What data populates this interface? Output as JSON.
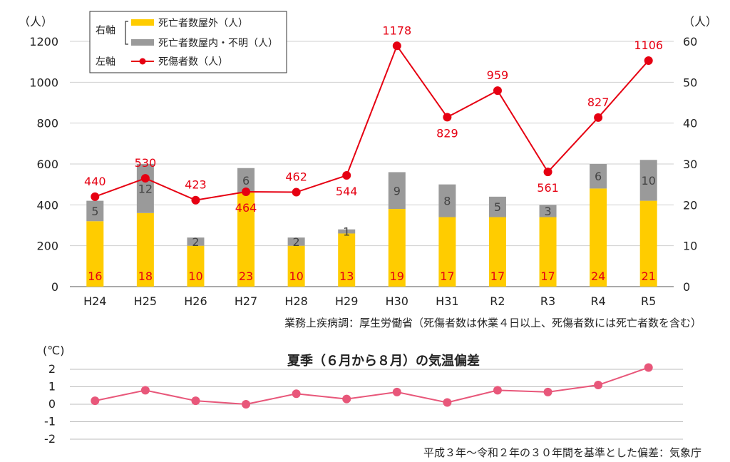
{
  "chart_data": [
    {
      "type": "bar",
      "categories": [
        "H24",
        "H25",
        "H26",
        "H27",
        "H28",
        "H29",
        "H30",
        "H31",
        "R2",
        "R3",
        "R4",
        "R5"
      ],
      "left_axis": {
        "unit": "（人）",
        "ylim": [
          0,
          1200
        ],
        "ticks": [
          "0",
          "200",
          "400",
          "600",
          "800",
          "1000",
          "1200"
        ]
      },
      "right_axis": {
        "unit": "（人）",
        "ylim": [
          0,
          60
        ],
        "ticks": [
          "0",
          "10",
          "20",
          "30",
          "40",
          "50",
          "60"
        ]
      },
      "legend": {
        "right_axis_label": "右軸",
        "left_axis_label": "左軸",
        "items": [
          "死亡者数屋外（人）",
          "死亡者数屋内・不明（人）",
          "死傷者数（人）"
        ]
      },
      "series": [
        {
          "name": "死亡者数屋外（人）",
          "axis": "right",
          "kind": "bar",
          "color": "#FFCC00",
          "values": [
            16,
            18,
            10,
            23,
            10,
            13,
            19,
            17,
            17,
            17,
            24,
            21
          ]
        },
        {
          "name": "死亡者数屋内・不明（人）",
          "axis": "right",
          "kind": "bar",
          "color": "#9A9A9A",
          "values": [
            5,
            12,
            2,
            6,
            2,
            1,
            9,
            8,
            5,
            3,
            6,
            10
          ]
        },
        {
          "name": "死傷者数（人）",
          "axis": "left",
          "kind": "line",
          "color": "#E60012",
          "values": [
            440,
            530,
            423,
            464,
            462,
            544,
            1178,
            829,
            959,
            561,
            827,
            1106
          ]
        }
      ],
      "source": "業務上疾病調：厚生労働省（死傷者数は休業４日以上、死傷者数には死亡者数を含む）"
    },
    {
      "type": "line",
      "title": "夏季（６月から８月）の気温偏差",
      "y_unit": "(℃)",
      "ylim": [
        -2,
        2
      ],
      "ticks": [
        "2",
        "1",
        "0",
        "-1",
        "-2"
      ],
      "color": "#E8577A",
      "values": [
        0.2,
        0.8,
        0.2,
        0.0,
        0.6,
        0.3,
        0.7,
        0.1,
        0.8,
        0.7,
        1.1,
        2.1
      ],
      "source": "平成３年～令和２年の３０年間を基準とした偏差：気象庁"
    }
  ]
}
